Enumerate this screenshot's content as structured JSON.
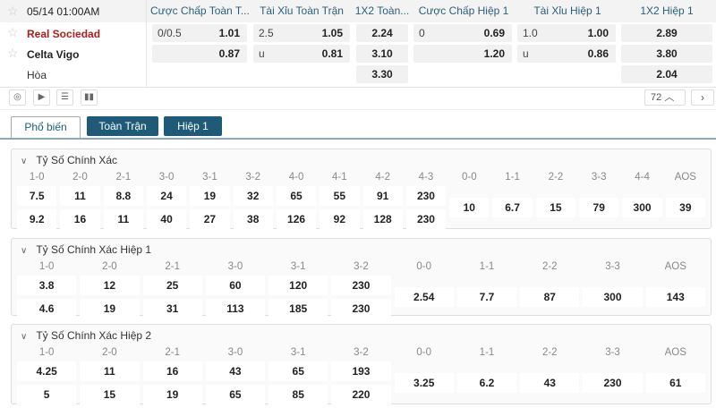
{
  "match": {
    "datetime": "05/14 01:00AM",
    "home": "Real Sociedad",
    "away": "Celta Vigo",
    "draw": "Hòa"
  },
  "columns": [
    "Cược Chấp Toàn T...",
    "Tài Xỉu Toàn Trận",
    "1X2 Toàn...",
    "Cược Chấp Hiệp 1",
    "Tài Xỉu Hiệp 1",
    "1X2 Hiệp 1"
  ],
  "odds": {
    "ah_ft": {
      "line": "0/0.5",
      "home": "1.01",
      "away": "0.87"
    },
    "ou_ft": {
      "line": "2.5",
      "over": "1.05",
      "u": "u",
      "under": "0.81"
    },
    "x12_ft": {
      "home": "2.24",
      "away": "3.10",
      "draw": "3.30"
    },
    "ah_h1": {
      "line": "0",
      "home": "0.69",
      "away": "1.20"
    },
    "ou_h1": {
      "line": "1.0",
      "over": "1.00",
      "u": "u",
      "under": "0.86"
    },
    "x12_h1": {
      "home": "2.89",
      "away": "3.80",
      "draw": "2.04"
    }
  },
  "more_count": "72",
  "colors": {
    "home": "#b01c1c",
    "accent": "#1f5b78"
  },
  "tabs": [
    {
      "label": "Phổ biến",
      "active": true
    },
    {
      "label": "Toàn Trận"
    },
    {
      "label": "Hiệp 1"
    }
  ],
  "sections": [
    {
      "title": "Tỷ Số Chính Xác",
      "two": [
        [
          "1-0",
          "7.5",
          "9.2"
        ],
        [
          "2-0",
          "11",
          "16"
        ],
        [
          "2-1",
          "8.8",
          "11"
        ],
        [
          "3-0",
          "24",
          "40"
        ],
        [
          "3-1",
          "19",
          "27"
        ],
        [
          "3-2",
          "32",
          "38"
        ],
        [
          "4-0",
          "65",
          "126"
        ],
        [
          "4-1",
          "55",
          "92"
        ],
        [
          "4-2",
          "91",
          "128"
        ],
        [
          "4-3",
          "230",
          "230"
        ]
      ],
      "one": [
        [
          "0-0",
          "10"
        ],
        [
          "1-1",
          "6.7"
        ],
        [
          "2-2",
          "15"
        ],
        [
          "3-3",
          "79"
        ],
        [
          "4-4",
          "300"
        ],
        [
          "AOS",
          "39"
        ]
      ]
    },
    {
      "title": "Tỷ Số Chính Xác Hiệp 1",
      "two": [
        [
          "1-0",
          "3.8",
          "4.6"
        ],
        [
          "2-0",
          "12",
          "19"
        ],
        [
          "2-1",
          "25",
          "31"
        ],
        [
          "3-0",
          "60",
          "113"
        ],
        [
          "3-1",
          "120",
          "185"
        ],
        [
          "3-2",
          "230",
          "230"
        ]
      ],
      "one": [
        [
          "0-0",
          "2.54"
        ],
        [
          "1-1",
          "7.7"
        ],
        [
          "2-2",
          "87"
        ],
        [
          "3-3",
          "300"
        ],
        [
          "AOS",
          "143"
        ]
      ]
    },
    {
      "title": "Tỷ Số Chính Xác Hiệp 2",
      "two": [
        [
          "1-0",
          "4.25",
          "5"
        ],
        [
          "2-0",
          "11",
          "15"
        ],
        [
          "2-1",
          "16",
          "19"
        ],
        [
          "3-0",
          "43",
          "65"
        ],
        [
          "3-1",
          "65",
          "85"
        ],
        [
          "3-2",
          "193",
          "220"
        ]
      ],
      "one": [
        [
          "0-0",
          "3.25"
        ],
        [
          "1-1",
          "6.2"
        ],
        [
          "2-2",
          "43"
        ],
        [
          "3-3",
          "230"
        ],
        [
          "AOS",
          "61"
        ]
      ]
    }
  ]
}
